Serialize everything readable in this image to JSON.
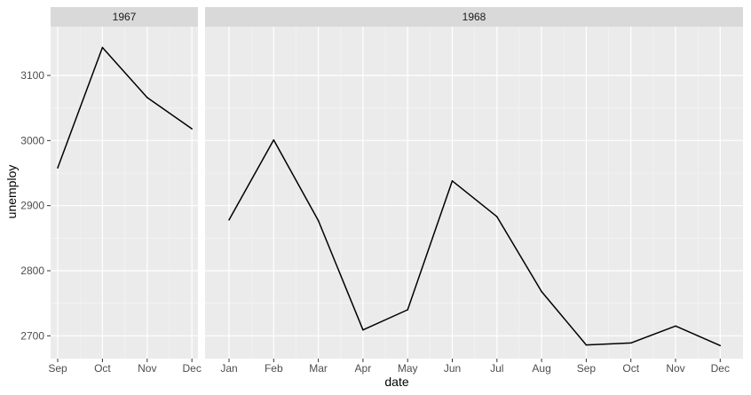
{
  "chart_data": {
    "type": "line",
    "xlabel": "date",
    "ylabel": "unemploy",
    "ylim": [
      2665,
      3175
    ],
    "yticks": [
      2700,
      2800,
      2900,
      3000,
      3100
    ],
    "y_tick_labels": [
      "2700",
      "2800",
      "2900",
      "3000",
      "3100"
    ],
    "grid": true,
    "legend": "none",
    "line_color": "#000000",
    "panel_background": "#ebebeb",
    "strip_background": "#d9d9d9",
    "facets": [
      {
        "label": "1967",
        "x": [
          "Sep",
          "Oct",
          "Nov",
          "Dec"
        ],
        "values": [
          2958,
          3143,
          3066,
          3018
        ]
      },
      {
        "label": "1968",
        "x": [
          "Jan",
          "Feb",
          "Mar",
          "Apr",
          "May",
          "Jun",
          "Jul",
          "Aug",
          "Sep",
          "Oct",
          "Nov",
          "Dec"
        ],
        "values": [
          2878,
          3001,
          2877,
          2709,
          2740,
          2938,
          2883,
          2768,
          2686,
          2689,
          2715,
          2685
        ]
      }
    ]
  }
}
